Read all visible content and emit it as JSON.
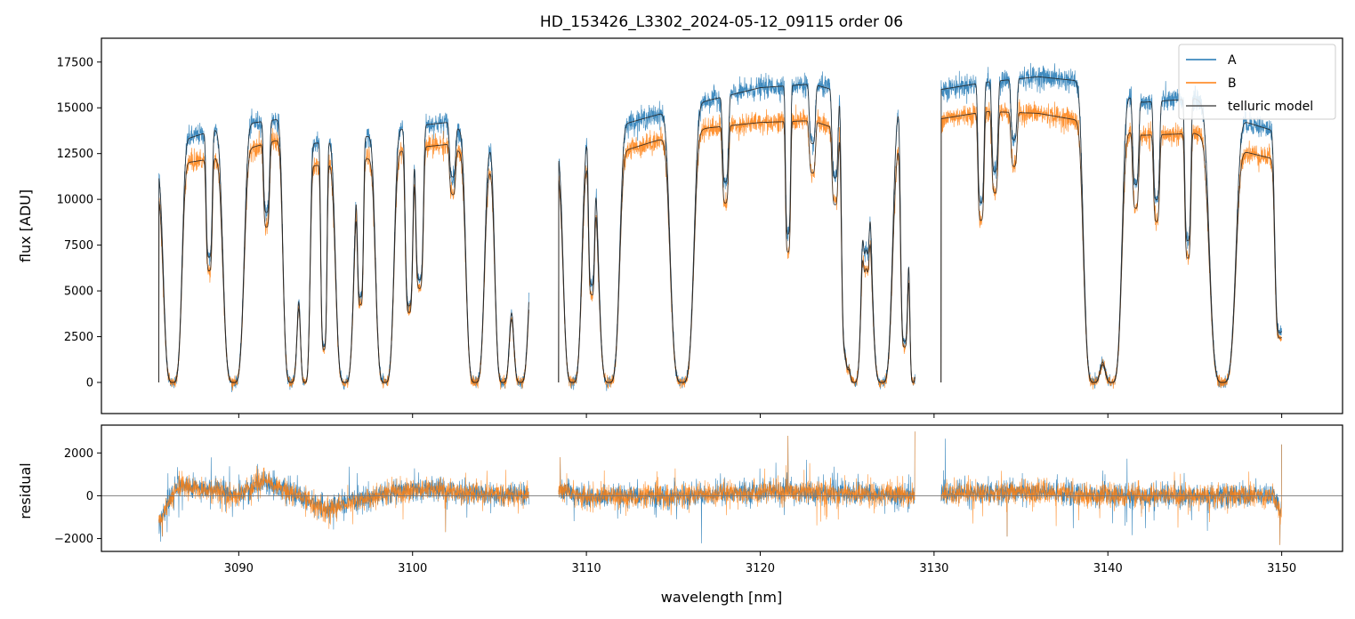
{
  "chart_data": [
    {
      "type": "line",
      "panel": "spectrum",
      "title": "HD_153426_L3302_2024-05-12_09115  order 06",
      "xlabel": "",
      "ylabel": "flux [ADU]",
      "xlim": [
        3082.1,
        3153.5
      ],
      "ylim": [
        -1700,
        18800
      ],
      "yticks": [
        0,
        2500,
        5000,
        7500,
        10000,
        12500,
        15000,
        17500
      ],
      "ytick_labels": [
        "0",
        "2500",
        "5000",
        "7500",
        "10000",
        "12500",
        "15000",
        "17500"
      ],
      "xticks": [
        3090,
        3100,
        3110,
        3120,
        3130,
        3140,
        3150
      ],
      "legend": {
        "placement": "top-right",
        "entries": [
          "A",
          "B",
          "telluric model"
        ]
      },
      "segments": [
        [
          3085.4,
          3106.7
        ],
        [
          3108.4,
          3128.9
        ],
        [
          3130.4,
          3150.0
        ]
      ],
      "continuum_points": {
        "x": [
          3085.4,
          3087.0,
          3089.0,
          3091.0,
          3092.5,
          3094.0,
          3096.0,
          3098.0,
          3100.0,
          3102.0,
          3104.5,
          3106.7,
          3108.4,
          3111.0,
          3114.0,
          3117.0,
          3120.0,
          3123.0,
          3126.0,
          3128.9,
          3130.4,
          3133.0,
          3136.0,
          3139.0,
          3142.0,
          3145.0,
          3147.0,
          3150.0
        ],
        "A": [
          11600,
          13300,
          13900,
          14200,
          14400,
          13000,
          13300,
          13500,
          14000,
          14200,
          12800,
          7500,
          12600,
          13800,
          14600,
          15400,
          16100,
          16300,
          15500,
          14800,
          16000,
          16400,
          16700,
          16400,
          15300,
          15500,
          14500,
          13600
        ],
        "B": [
          10300,
          12000,
          12300,
          12900,
          13300,
          11800,
          12000,
          12300,
          12800,
          13000,
          11600,
          6800,
          11500,
          12300,
          13200,
          13900,
          14200,
          14300,
          13300,
          12800,
          14400,
          14800,
          14700,
          14200,
          13500,
          13600,
          12800,
          12100
        ]
      },
      "absorption_lines": [
        {
          "center": 3086.2,
          "width": 0.35,
          "depth": 1.0
        },
        {
          "center": 3088.3,
          "width": 0.12,
          "depth": 0.5
        },
        {
          "center": 3089.7,
          "width": 0.4,
          "depth": 1.0
        },
        {
          "center": 3091.6,
          "width": 0.12,
          "depth": 0.35
        },
        {
          "center": 3093.0,
          "width": 0.3,
          "depth": 1.0
        },
        {
          "center": 3093.8,
          "width": 0.2,
          "depth": 1.0
        },
        {
          "center": 3094.9,
          "width": 0.12,
          "depth": 0.85
        },
        {
          "center": 3096.1,
          "width": 0.35,
          "depth": 1.0
        },
        {
          "center": 3097.0,
          "width": 0.12,
          "depth": 0.65
        },
        {
          "center": 3098.4,
          "width": 0.35,
          "depth": 1.0
        },
        {
          "center": 3099.8,
          "width": 0.15,
          "depth": 0.7
        },
        {
          "center": 3100.4,
          "width": 0.15,
          "depth": 0.6
        },
        {
          "center": 3102.3,
          "width": 0.12,
          "depth": 0.2
        },
        {
          "center": 3103.6,
          "width": 0.35,
          "depth": 1.0
        },
        {
          "center": 3105.2,
          "width": 0.3,
          "depth": 1.0
        },
        {
          "center": 3106.2,
          "width": 0.3,
          "depth": 1.0
        },
        {
          "center": 3109.2,
          "width": 0.35,
          "depth": 1.0
        },
        {
          "center": 3110.3,
          "width": 0.12,
          "depth": 0.6
        },
        {
          "center": 3111.3,
          "width": 0.4,
          "depth": 1.0
        },
        {
          "center": 3115.5,
          "width": 0.45,
          "depth": 1.0
        },
        {
          "center": 3118.0,
          "width": 0.12,
          "depth": 0.3
        },
        {
          "center": 3121.6,
          "width": 0.1,
          "depth": 0.5
        },
        {
          "center": 3123.0,
          "width": 0.12,
          "depth": 0.2
        },
        {
          "center": 3124.3,
          "width": 0.12,
          "depth": 0.3
        },
        {
          "center": 3124.9,
          "width": 0.15,
          "depth": 0.85
        },
        {
          "center": 3125.4,
          "width": 0.3,
          "depth": 1.0
        },
        {
          "center": 3126.1,
          "width": 0.12,
          "depth": 0.5
        },
        {
          "center": 3127.0,
          "width": 0.4,
          "depth": 1.0
        },
        {
          "center": 3128.3,
          "width": 0.15,
          "depth": 0.85
        },
        {
          "center": 3128.8,
          "width": 0.15,
          "depth": 1.0
        },
        {
          "center": 3132.7,
          "width": 0.12,
          "depth": 0.4
        },
        {
          "center": 3133.5,
          "width": 0.12,
          "depth": 0.3
        },
        {
          "center": 3134.6,
          "width": 0.12,
          "depth": 0.2
        },
        {
          "center": 3139.2,
          "width": 0.4,
          "depth": 1.0
        },
        {
          "center": 3140.2,
          "width": 0.4,
          "depth": 1.0
        },
        {
          "center": 3141.6,
          "width": 0.12,
          "depth": 0.3
        },
        {
          "center": 3142.8,
          "width": 0.12,
          "depth": 0.35
        },
        {
          "center": 3144.6,
          "width": 0.12,
          "depth": 0.5
        },
        {
          "center": 3146.6,
          "width": 0.5,
          "depth": 1.0
        },
        {
          "center": 3149.9,
          "width": 0.2,
          "depth": 0.8
        }
      ],
      "series": [
        {
          "name": "A",
          "color": "#1f77b4"
        },
        {
          "name": "B",
          "color": "#ff7f0e"
        },
        {
          "name": "telluric model",
          "color": "#555555"
        }
      ]
    },
    {
      "type": "line",
      "panel": "residual",
      "xlabel": "wavelength [nm]",
      "ylabel": "residual",
      "xlim": [
        3082.1,
        3153.5
      ],
      "ylim": [
        -2600,
        3300
      ],
      "yticks": [
        -2000,
        0,
        2000
      ],
      "ytick_labels": [
        "−2000",
        "0",
        "2000"
      ],
      "xticks": [
        3090,
        3100,
        3110,
        3120,
        3130,
        3140,
        3150
      ],
      "xtick_labels": [
        "3090",
        "3100",
        "3110",
        "3120",
        "3130",
        "3140",
        "3150"
      ],
      "zero_line": 0,
      "noise_rms": 260,
      "baseline_points": {
        "x": [
          3085.4,
          3086.5,
          3088.0,
          3090.0,
          3091.5,
          3093.0,
          3095.0,
          3097.0,
          3099.0,
          3101.0,
          3104.0,
          3106.7,
          3108.4,
          3110.0,
          3115.0,
          3120.0,
          3125.0,
          3128.9,
          3130.4,
          3135.0,
          3140.0,
          3145.0,
          3149.5,
          3150.0
        ],
        "y": [
          -1200,
          500,
          300,
          0,
          700,
          100,
          -600,
          -200,
          200,
          300,
          100,
          0,
          300,
          -100,
          0,
          200,
          100,
          0,
          100,
          200,
          0,
          0,
          0,
          -800
        ]
      },
      "spikes": [
        {
          "x": 3085.6,
          "y": -1900
        },
        {
          "x": 3101.9,
          "y": -1700
        },
        {
          "x": 3106.7,
          "y": -1600
        },
        {
          "x": 3108.5,
          "y": 1800
        },
        {
          "x": 3121.6,
          "y": 2800
        },
        {
          "x": 3128.9,
          "y": 3000
        },
        {
          "x": 3134.2,
          "y": -1900
        },
        {
          "x": 3149.9,
          "y": -2300
        },
        {
          "x": 3150.0,
          "y": 2400
        }
      ],
      "series": [
        {
          "name": "A",
          "color": "#1f77b4"
        },
        {
          "name": "B",
          "color": "#ff7f0e"
        }
      ]
    }
  ]
}
